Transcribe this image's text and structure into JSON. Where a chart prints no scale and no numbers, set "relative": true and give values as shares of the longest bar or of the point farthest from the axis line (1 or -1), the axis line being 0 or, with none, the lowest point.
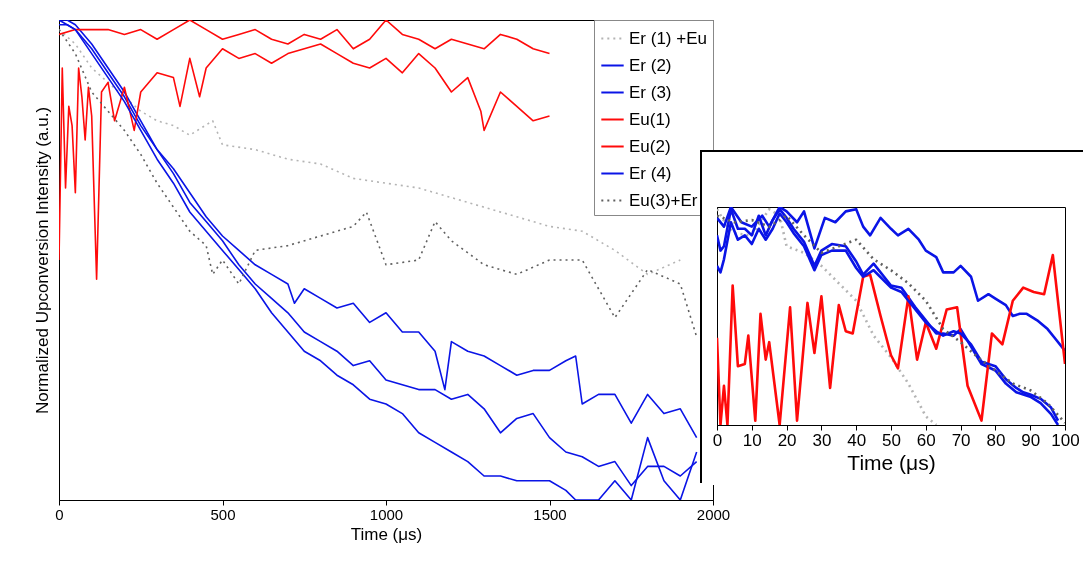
{
  "chart_data": [
    {
      "type": "line",
      "xlabel": "Time (μs)",
      "ylabel": "Normalized Upconversion Intensity (a.u.)",
      "relative": true,
      "xlim": [
        0,
        2000
      ],
      "xticks": [
        0,
        500,
        1000,
        1500,
        2000
      ],
      "legend": "top right",
      "series": [
        {
          "name": "Er (1) +Eu",
          "color": "#b4b4b4",
          "line_style": "dotted",
          "x": [
            0,
            50,
            100,
            150,
            200,
            250,
            300,
            350,
            400,
            470,
            500,
            600,
            700,
            800,
            900,
            1000,
            1100,
            1200,
            1300,
            1400,
            1500,
            1600,
            1700,
            1800,
            1900
          ],
          "values": [
            0.98,
            0.95,
            0.9,
            0.87,
            0.84,
            0.81,
            0.79,
            0.78,
            0.76,
            0.79,
            0.74,
            0.73,
            0.71,
            0.7,
            0.67,
            0.66,
            0.65,
            0.63,
            0.61,
            0.59,
            0.57,
            0.56,
            0.52,
            0.47,
            0.5
          ]
        },
        {
          "name": "Er (2)",
          "color": "#0a14e6",
          "line_style": "solid",
          "x": [
            0,
            25,
            50,
            100,
            150,
            200,
            250,
            300,
            350,
            400,
            450,
            500,
            550,
            600,
            650,
            700,
            720,
            750,
            800,
            850,
            900,
            950,
            1000,
            1050,
            1100,
            1150,
            1180,
            1200,
            1250,
            1300,
            1350,
            1400,
            1450,
            1500,
            1550,
            1580,
            1600,
            1650,
            1700,
            1750,
            1800,
            1850,
            1900,
            1950
          ],
          "values": [
            1.0,
            1.0,
            0.99,
            0.95,
            0.9,
            0.85,
            0.79,
            0.73,
            0.69,
            0.64,
            0.59,
            0.55,
            0.52,
            0.49,
            0.47,
            0.45,
            0.41,
            0.44,
            0.42,
            0.4,
            0.41,
            0.37,
            0.39,
            0.35,
            0.35,
            0.31,
            0.23,
            0.33,
            0.31,
            0.3,
            0.28,
            0.26,
            0.27,
            0.27,
            0.29,
            0.3,
            0.2,
            0.22,
            0.22,
            0.16,
            0.22,
            0.18,
            0.19,
            0.13
          ]
        },
        {
          "name": "Er (3)",
          "color": "#0a14e6",
          "line_style": "solid",
          "x": [
            0,
            25,
            50,
            100,
            150,
            200,
            250,
            300,
            350,
            400,
            450,
            500,
            550,
            600,
            650,
            700,
            750,
            800,
            850,
            900,
            950,
            1000,
            1050,
            1100,
            1150,
            1200,
            1250,
            1300,
            1350,
            1400,
            1450,
            1500,
            1550,
            1600,
            1650,
            1700,
            1750,
            1800,
            1850,
            1900,
            1950
          ],
          "values": [
            1.0,
            0.99,
            0.98,
            0.94,
            0.89,
            0.84,
            0.78,
            0.73,
            0.68,
            0.62,
            0.58,
            0.54,
            0.49,
            0.45,
            0.42,
            0.39,
            0.35,
            0.33,
            0.31,
            0.28,
            0.29,
            0.25,
            0.24,
            0.23,
            0.23,
            0.21,
            0.22,
            0.19,
            0.14,
            0.17,
            0.18,
            0.13,
            0.1,
            0.09,
            0.07,
            0.08,
            0.03,
            0.07,
            0.07,
            0.05,
            0.08
          ]
        },
        {
          "name": "Eu(1)",
          "color": "#ff0a0a",
          "line_style": "solid",
          "x": [
            0,
            50,
            100,
            150,
            200,
            250,
            300,
            350,
            400,
            450,
            500,
            550,
            600,
            650,
            700,
            750,
            800,
            850,
            900,
            950,
            1000,
            1050,
            1100,
            1150,
            1200,
            1250,
            1300,
            1350,
            1400,
            1450,
            1500
          ],
          "values": [
            0.97,
            0.98,
            0.98,
            0.98,
            0.97,
            0.98,
            0.96,
            0.98,
            1.0,
            0.98,
            0.96,
            0.97,
            0.98,
            0.96,
            0.95,
            0.97,
            0.96,
            0.98,
            0.94,
            0.96,
            1.0,
            0.97,
            0.96,
            0.94,
            0.96,
            0.95,
            0.94,
            0.97,
            0.96,
            0.94,
            0.93
          ]
        },
        {
          "name": "Eu(2)",
          "color": "#ff0a0a",
          "line_style": "solid",
          "x": [
            0,
            10,
            20,
            30,
            40,
            50,
            60,
            70,
            80,
            90,
            100,
            115,
            130,
            150,
            170,
            200,
            230,
            250,
            300,
            350,
            370,
            400,
            430,
            450,
            500,
            550,
            600,
            650,
            700,
            750,
            800,
            850,
            900,
            950,
            1000,
            1050,
            1100,
            1150,
            1200,
            1250,
            1290,
            1300,
            1350,
            1400,
            1450,
            1500
          ],
          "values": [
            0.5,
            0.9,
            0.65,
            0.82,
            0.78,
            0.64,
            0.9,
            0.84,
            0.75,
            0.86,
            0.8,
            0.46,
            0.85,
            0.87,
            0.79,
            0.86,
            0.77,
            0.85,
            0.89,
            0.88,
            0.82,
            0.92,
            0.84,
            0.9,
            0.94,
            0.92,
            0.93,
            0.91,
            0.93,
            0.94,
            0.95,
            0.93,
            0.91,
            0.9,
            0.92,
            0.89,
            0.93,
            0.9,
            0.85,
            0.88,
            0.81,
            0.77,
            0.85,
            0.82,
            0.79,
            0.8
          ]
        },
        {
          "name": "Er (4)",
          "color": "#0a14e6",
          "line_style": "solid",
          "x": [
            0,
            25,
            50,
            100,
            150,
            200,
            250,
            300,
            350,
            400,
            450,
            500,
            550,
            600,
            650,
            700,
            750,
            800,
            850,
            900,
            950,
            1000,
            1050,
            1100,
            1150,
            1200,
            1250,
            1300,
            1350,
            1400,
            1450,
            1500,
            1550,
            1580,
            1650,
            1700,
            1750,
            1800,
            1850,
            1900,
            1950
          ],
          "values": [
            0.99,
            0.99,
            0.98,
            0.93,
            0.88,
            0.83,
            0.77,
            0.71,
            0.66,
            0.6,
            0.56,
            0.52,
            0.48,
            0.44,
            0.39,
            0.35,
            0.31,
            0.29,
            0.26,
            0.24,
            0.21,
            0.2,
            0.18,
            0.14,
            0.12,
            0.1,
            0.08,
            0.05,
            0.05,
            0.04,
            0.04,
            0.04,
            0.02,
            0.0,
            0.0,
            0.04,
            0.0,
            0.13,
            0.04,
            0.0,
            0.1
          ]
        },
        {
          "name": "Eu(3)+Er",
          "color": "#606060",
          "line_style": "dotted",
          "x": [
            0,
            50,
            100,
            150,
            200,
            250,
            300,
            350,
            400,
            450,
            470,
            500,
            550,
            600,
            700,
            800,
            900,
            940,
            1000,
            1100,
            1150,
            1200,
            1300,
            1400,
            1500,
            1600,
            1700,
            1800,
            1900,
            1950
          ],
          "values": [
            0.98,
            0.93,
            0.85,
            0.81,
            0.77,
            0.72,
            0.66,
            0.61,
            0.56,
            0.53,
            0.47,
            0.5,
            0.45,
            0.52,
            0.53,
            0.55,
            0.57,
            0.6,
            0.49,
            0.5,
            0.58,
            0.54,
            0.49,
            0.47,
            0.5,
            0.5,
            0.38,
            0.48,
            0.45,
            0.34
          ]
        }
      ]
    },
    {
      "type": "line",
      "xlabel": "Time (μs)",
      "relative": true,
      "xlim": [
        0,
        100
      ],
      "xticks": [
        0,
        10,
        20,
        30,
        40,
        50,
        60,
        70,
        80,
        90,
        100
      ],
      "series": [
        {
          "color": "#b4b4b4",
          "line_style": "dotted",
          "x": [
            0,
            3,
            5,
            10,
            15,
            18,
            20,
            25,
            30,
            35,
            40,
            45,
            50,
            55,
            60,
            63
          ],
          "values": [
            0.99,
            0.91,
            0.88,
            0.87,
            0.99,
            0.96,
            0.82,
            0.79,
            0.73,
            0.65,
            0.57,
            0.41,
            0.31,
            0.19,
            0.04,
            0.0
          ]
        },
        {
          "color": "#0a14e6",
          "line_style": "solid",
          "x": [
            0,
            2,
            4,
            7,
            10,
            13,
            15,
            18,
            20,
            23,
            25,
            28,
            31,
            34,
            37,
            40,
            42,
            44,
            47,
            50,
            52,
            55,
            58,
            60,
            63,
            65,
            68,
            70,
            73,
            75,
            78,
            80,
            83,
            85,
            87,
            89,
            92,
            95,
            97,
            100
          ],
          "values": [
            0.95,
            0.91,
            1.0,
            0.93,
            0.91,
            0.96,
            0.91,
            1.0,
            0.98,
            0.93,
            0.98,
            0.81,
            0.95,
            0.93,
            0.98,
            0.99,
            0.91,
            0.87,
            0.95,
            0.9,
            0.87,
            0.9,
            0.85,
            0.8,
            0.77,
            0.7,
            0.7,
            0.73,
            0.68,
            0.57,
            0.6,
            0.58,
            0.55,
            0.5,
            0.51,
            0.51,
            0.48,
            0.44,
            0.4,
            0.34
          ]
        },
        {
          "color": "#0a14e6",
          "line_style": "solid",
          "x": [
            0,
            1,
            2,
            4,
            6,
            8,
            10,
            12,
            14,
            16,
            18,
            20,
            22,
            25,
            28,
            30,
            33,
            37,
            40,
            42,
            45,
            50,
            53,
            57,
            60,
            63,
            65,
            68,
            70,
            73,
            76,
            80,
            83,
            86,
            88,
            90,
            93,
            96,
            98
          ],
          "values": [
            0.87,
            0.8,
            0.82,
            0.99,
            0.9,
            0.9,
            0.87,
            0.96,
            0.87,
            0.94,
            0.99,
            0.95,
            0.9,
            0.84,
            0.73,
            0.8,
            0.83,
            0.82,
            0.75,
            0.69,
            0.74,
            0.64,
            0.63,
            0.54,
            0.48,
            0.42,
            0.42,
            0.41,
            0.44,
            0.36,
            0.28,
            0.25,
            0.19,
            0.15,
            0.14,
            0.13,
            0.1,
            0.05,
            0.0
          ]
        },
        {
          "color": "#ff0a0a",
          "line_style": "solid",
          "x": [
            0,
            1,
            2,
            3,
            4.5,
            6,
            8,
            9,
            11,
            12.5,
            14,
            15,
            18,
            21,
            23,
            26,
            28,
            30,
            32.5,
            35,
            37,
            39,
            42,
            44,
            47,
            50,
            52,
            55,
            57.5,
            60,
            63,
            66,
            69,
            72,
            76,
            79,
            82,
            85,
            88,
            91,
            94,
            96.5,
            100
          ],
          "values": [
            0.4,
            0.0,
            0.18,
            0.0,
            0.64,
            0.27,
            0.28,
            0.41,
            0.02,
            0.51,
            0.3,
            0.38,
            0.0,
            0.54,
            0.02,
            0.56,
            0.33,
            0.59,
            0.17,
            0.55,
            0.43,
            0.42,
            0.68,
            0.69,
            0.5,
            0.32,
            0.26,
            0.59,
            0.3,
            0.47,
            0.35,
            0.53,
            0.54,
            0.18,
            0.02,
            0.42,
            0.37,
            0.57,
            0.63,
            0.61,
            0.6,
            0.78,
            0.28
          ]
        },
        {
          "color": "#0a14e6",
          "line_style": "solid",
          "x": [
            0,
            1,
            2,
            4,
            6,
            8,
            10,
            12,
            14,
            16,
            18,
            20,
            22,
            25,
            28,
            30,
            33,
            37,
            40,
            42,
            45,
            50,
            53,
            57,
            60,
            63,
            65,
            68,
            70,
            73,
            76,
            80,
            83,
            86,
            88,
            90,
            93,
            96,
            98
          ],
          "values": [
            0.73,
            0.7,
            0.76,
            0.93,
            0.85,
            0.87,
            0.83,
            0.9,
            0.85,
            0.9,
            0.97,
            0.93,
            0.88,
            0.82,
            0.71,
            0.78,
            0.8,
            0.8,
            0.72,
            0.68,
            0.71,
            0.63,
            0.61,
            0.53,
            0.47,
            0.43,
            0.41,
            0.43,
            0.42,
            0.37,
            0.29,
            0.27,
            0.21,
            0.17,
            0.15,
            0.14,
            0.12,
            0.08,
            0.02
          ]
        },
        {
          "color": "#606060",
          "line_style": "dotted",
          "x": [
            0,
            5,
            10,
            15,
            20,
            25,
            30,
            35,
            40,
            45,
            50,
            55,
            60,
            65,
            70,
            75,
            80,
            85,
            90,
            95,
            100
          ],
          "values": [
            0.96,
            0.93,
            0.94,
            0.91,
            0.96,
            0.87,
            0.79,
            0.82,
            0.85,
            0.76,
            0.71,
            0.65,
            0.57,
            0.44,
            0.38,
            0.31,
            0.25,
            0.19,
            0.16,
            0.1,
            0.01
          ]
        }
      ]
    }
  ]
}
